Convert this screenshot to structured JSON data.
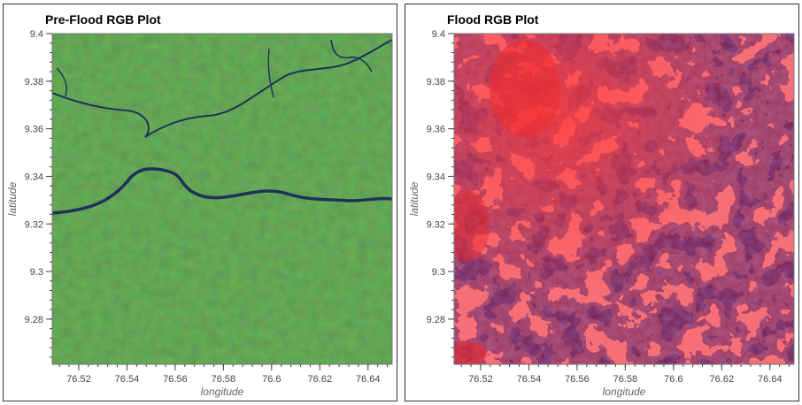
{
  "chart_data": [
    {
      "type": "heatmap",
      "title": "Pre-Flood RGB Plot",
      "xlabel": "longitude",
      "ylabel": "latitude",
      "xlim": [
        76.509,
        76.65
      ],
      "ylim": [
        9.261,
        9.4
      ],
      "xticks": [
        76.52,
        76.54,
        76.56,
        76.58,
        76.6,
        76.62,
        76.64
      ],
      "yticks": [
        9.28,
        9.3,
        9.32,
        9.34,
        9.36,
        9.38,
        9.4
      ],
      "xtick_labels": [
        "76.52",
        "76.54",
        "76.56",
        "76.58",
        "76.6",
        "76.62",
        "76.64"
      ],
      "ytick_labels": [
        "9.28",
        "9.3",
        "9.32",
        "9.34",
        "9.36",
        "9.38",
        "9.4"
      ],
      "image": "green vegetation with a dark blue river crossing east-west",
      "base_color": "#2f6e22",
      "river_color": "#21305a",
      "grid": false
    },
    {
      "type": "heatmap",
      "title": "Flood RGB Plot",
      "xlabel": "longitude",
      "ylabel": "latitude",
      "xlim": [
        76.509,
        76.65
      ],
      "ylim": [
        9.261,
        9.4
      ],
      "xticks": [
        76.52,
        76.54,
        76.56,
        76.58,
        76.6,
        76.62,
        76.64
      ],
      "yticks": [
        9.28,
        9.3,
        9.32,
        9.34,
        9.36,
        9.38,
        9.4
      ],
      "xtick_labels": [
        "76.52",
        "76.54",
        "76.56",
        "76.58",
        "76.6",
        "76.62",
        "76.64"
      ],
      "ytick_labels": [
        "9.28",
        "9.3",
        "9.32",
        "9.34",
        "9.36",
        "9.38",
        "9.4"
      ],
      "image": "red and purple flood extent composite",
      "base_color": "#7a2a5e",
      "flood_color": "#ee2a2e",
      "grid": false
    }
  ]
}
